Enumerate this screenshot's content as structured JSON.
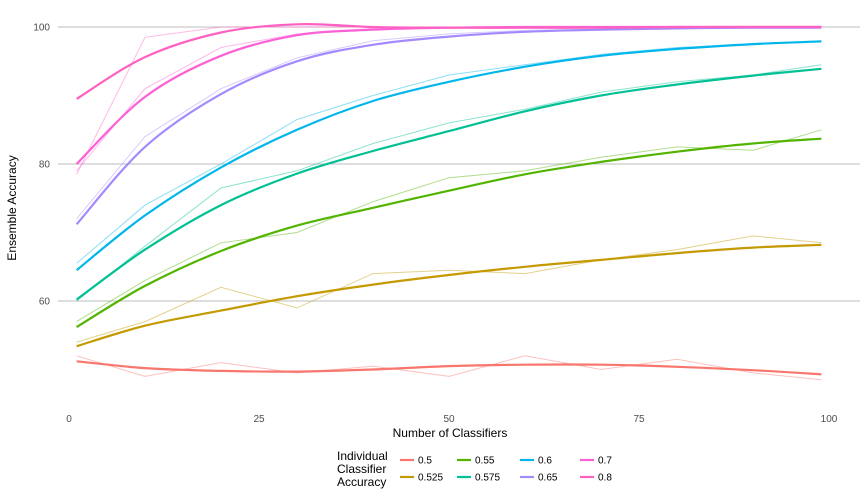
{
  "chart_data": {
    "type": "line",
    "xlabel": "Number of Classifiers",
    "ylabel": "Ensemble Accuracy",
    "xlim": [
      0,
      100
    ],
    "ylim": [
      46,
      101
    ],
    "x_ticks": [
      0,
      25,
      50,
      75,
      100
    ],
    "y_ticks": [
      60,
      80,
      100
    ],
    "grid": "horizontal major lines only",
    "legend": {
      "title_lines": [
        "Individual",
        "Classifier",
        "Accuracy"
      ],
      "placement": "bottom"
    },
    "series": [
      {
        "name": "0.5",
        "color": "#F8766D",
        "x": [
          1,
          10,
          20,
          30,
          40,
          50,
          60,
          70,
          80,
          90,
          99
        ],
        "smooth": [
          51.2,
          50.2,
          49.8,
          49.7,
          50.0,
          50.5,
          50.7,
          50.7,
          50.4,
          49.9,
          49.3
        ],
        "raw": [
          52.0,
          49.0,
          51.0,
          49.5,
          50.5,
          49.0,
          52.0,
          50.0,
          51.5,
          49.5,
          48.5
        ]
      },
      {
        "name": "0.525",
        "color": "#C49A00",
        "x": [
          1,
          10,
          20,
          30,
          40,
          50,
          60,
          70,
          80,
          90,
          99
        ],
        "smooth": [
          53.4,
          56.4,
          58.6,
          60.7,
          62.4,
          63.8,
          65.0,
          66.0,
          67.0,
          67.8,
          68.2
        ],
        "raw": [
          54.0,
          57.0,
          62.0,
          59.0,
          64.0,
          64.5,
          64.0,
          66.0,
          67.5,
          69.5,
          68.5
        ]
      },
      {
        "name": "0.55",
        "color": "#53B400",
        "x": [
          1,
          10,
          20,
          30,
          40,
          50,
          60,
          70,
          80,
          90,
          99
        ],
        "smooth": [
          56.2,
          62.2,
          67.3,
          71.0,
          73.6,
          76.1,
          78.5,
          80.3,
          81.8,
          83.0,
          83.7
        ],
        "raw": [
          57.0,
          63.0,
          68.5,
          70.0,
          74.5,
          78.0,
          79.0,
          81.0,
          82.5,
          82.0,
          85.0
        ]
      },
      {
        "name": "0.575",
        "color": "#00C094",
        "x": [
          1,
          10,
          20,
          30,
          40,
          50,
          60,
          70,
          80,
          90,
          99
        ],
        "smooth": [
          60.2,
          67.5,
          74.0,
          78.6,
          81.9,
          84.8,
          87.7,
          90.0,
          91.6,
          92.9,
          93.9
        ],
        "raw": [
          60.0,
          68.0,
          76.5,
          79.0,
          83.0,
          86.0,
          88.0,
          90.5,
          92.0,
          93.0,
          94.5
        ]
      },
      {
        "name": "0.6",
        "color": "#00B6EB",
        "x": [
          1,
          10,
          20,
          30,
          40,
          50,
          60,
          70,
          80,
          90,
          99
        ],
        "smooth": [
          64.5,
          72.5,
          79.5,
          85.0,
          89.2,
          92.0,
          94.2,
          95.8,
          96.8,
          97.5,
          97.9
        ],
        "raw": [
          65.5,
          74.0,
          80.0,
          86.5,
          90.0,
          93.0,
          94.5,
          96.0,
          97.0,
          97.5,
          98.0
        ]
      },
      {
        "name": "0.65",
        "color": "#A58AFF",
        "x": [
          1,
          10,
          20,
          30,
          40,
          50,
          60,
          70,
          80,
          90,
          99
        ],
        "smooth": [
          71.2,
          82.5,
          90.2,
          95.0,
          97.4,
          98.6,
          99.3,
          99.6,
          99.8,
          99.9,
          99.9
        ],
        "raw": [
          72.0,
          84.0,
          91.0,
          95.5,
          98.0,
          99.0,
          99.5,
          99.7,
          99.8,
          99.9,
          100.0
        ]
      },
      {
        "name": "0.7",
        "color": "#FB61D7",
        "x": [
          1,
          10,
          20,
          30,
          40,
          50,
          60,
          70,
          80,
          90,
          99
        ],
        "smooth": [
          80.0,
          89.8,
          95.8,
          98.8,
          99.6,
          99.9,
          100.0,
          100.0,
          100.0,
          100.0,
          100.0
        ],
        "raw": [
          79.0,
          91.0,
          97.0,
          99.0,
          99.8,
          100.0,
          100.0,
          100.0,
          100.0,
          100.0,
          100.0
        ]
      },
      {
        "name": "0.8",
        "color": "#FF61C3",
        "x": [
          1,
          10,
          20,
          30,
          40,
          50,
          60,
          70,
          80,
          90,
          99
        ],
        "smooth": [
          89.5,
          95.6,
          99.2,
          100.4,
          100.0,
          99.9,
          99.9,
          99.9,
          100.0,
          100.0,
          100.0
        ],
        "raw": [
          78.5,
          98.5,
          100.0,
          100.0,
          100.0,
          100.0,
          100.0,
          100.0,
          100.0,
          100.0,
          100.0
        ]
      }
    ]
  }
}
